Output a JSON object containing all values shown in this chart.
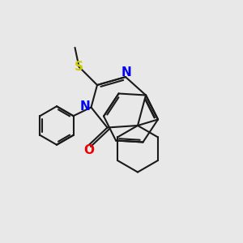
{
  "bg": "#e8e8e8",
  "bc": "#1a1a1a",
  "NC": "#0000ee",
  "OC": "#ee0000",
  "SC": "#cccc00",
  "bw": 1.5,
  "fs": 10,
  "figsize": [
    3.0,
    3.0
  ],
  "dpi": 100,
  "xlim": [
    -1,
    11
  ],
  "ylim": [
    -1,
    11
  ]
}
